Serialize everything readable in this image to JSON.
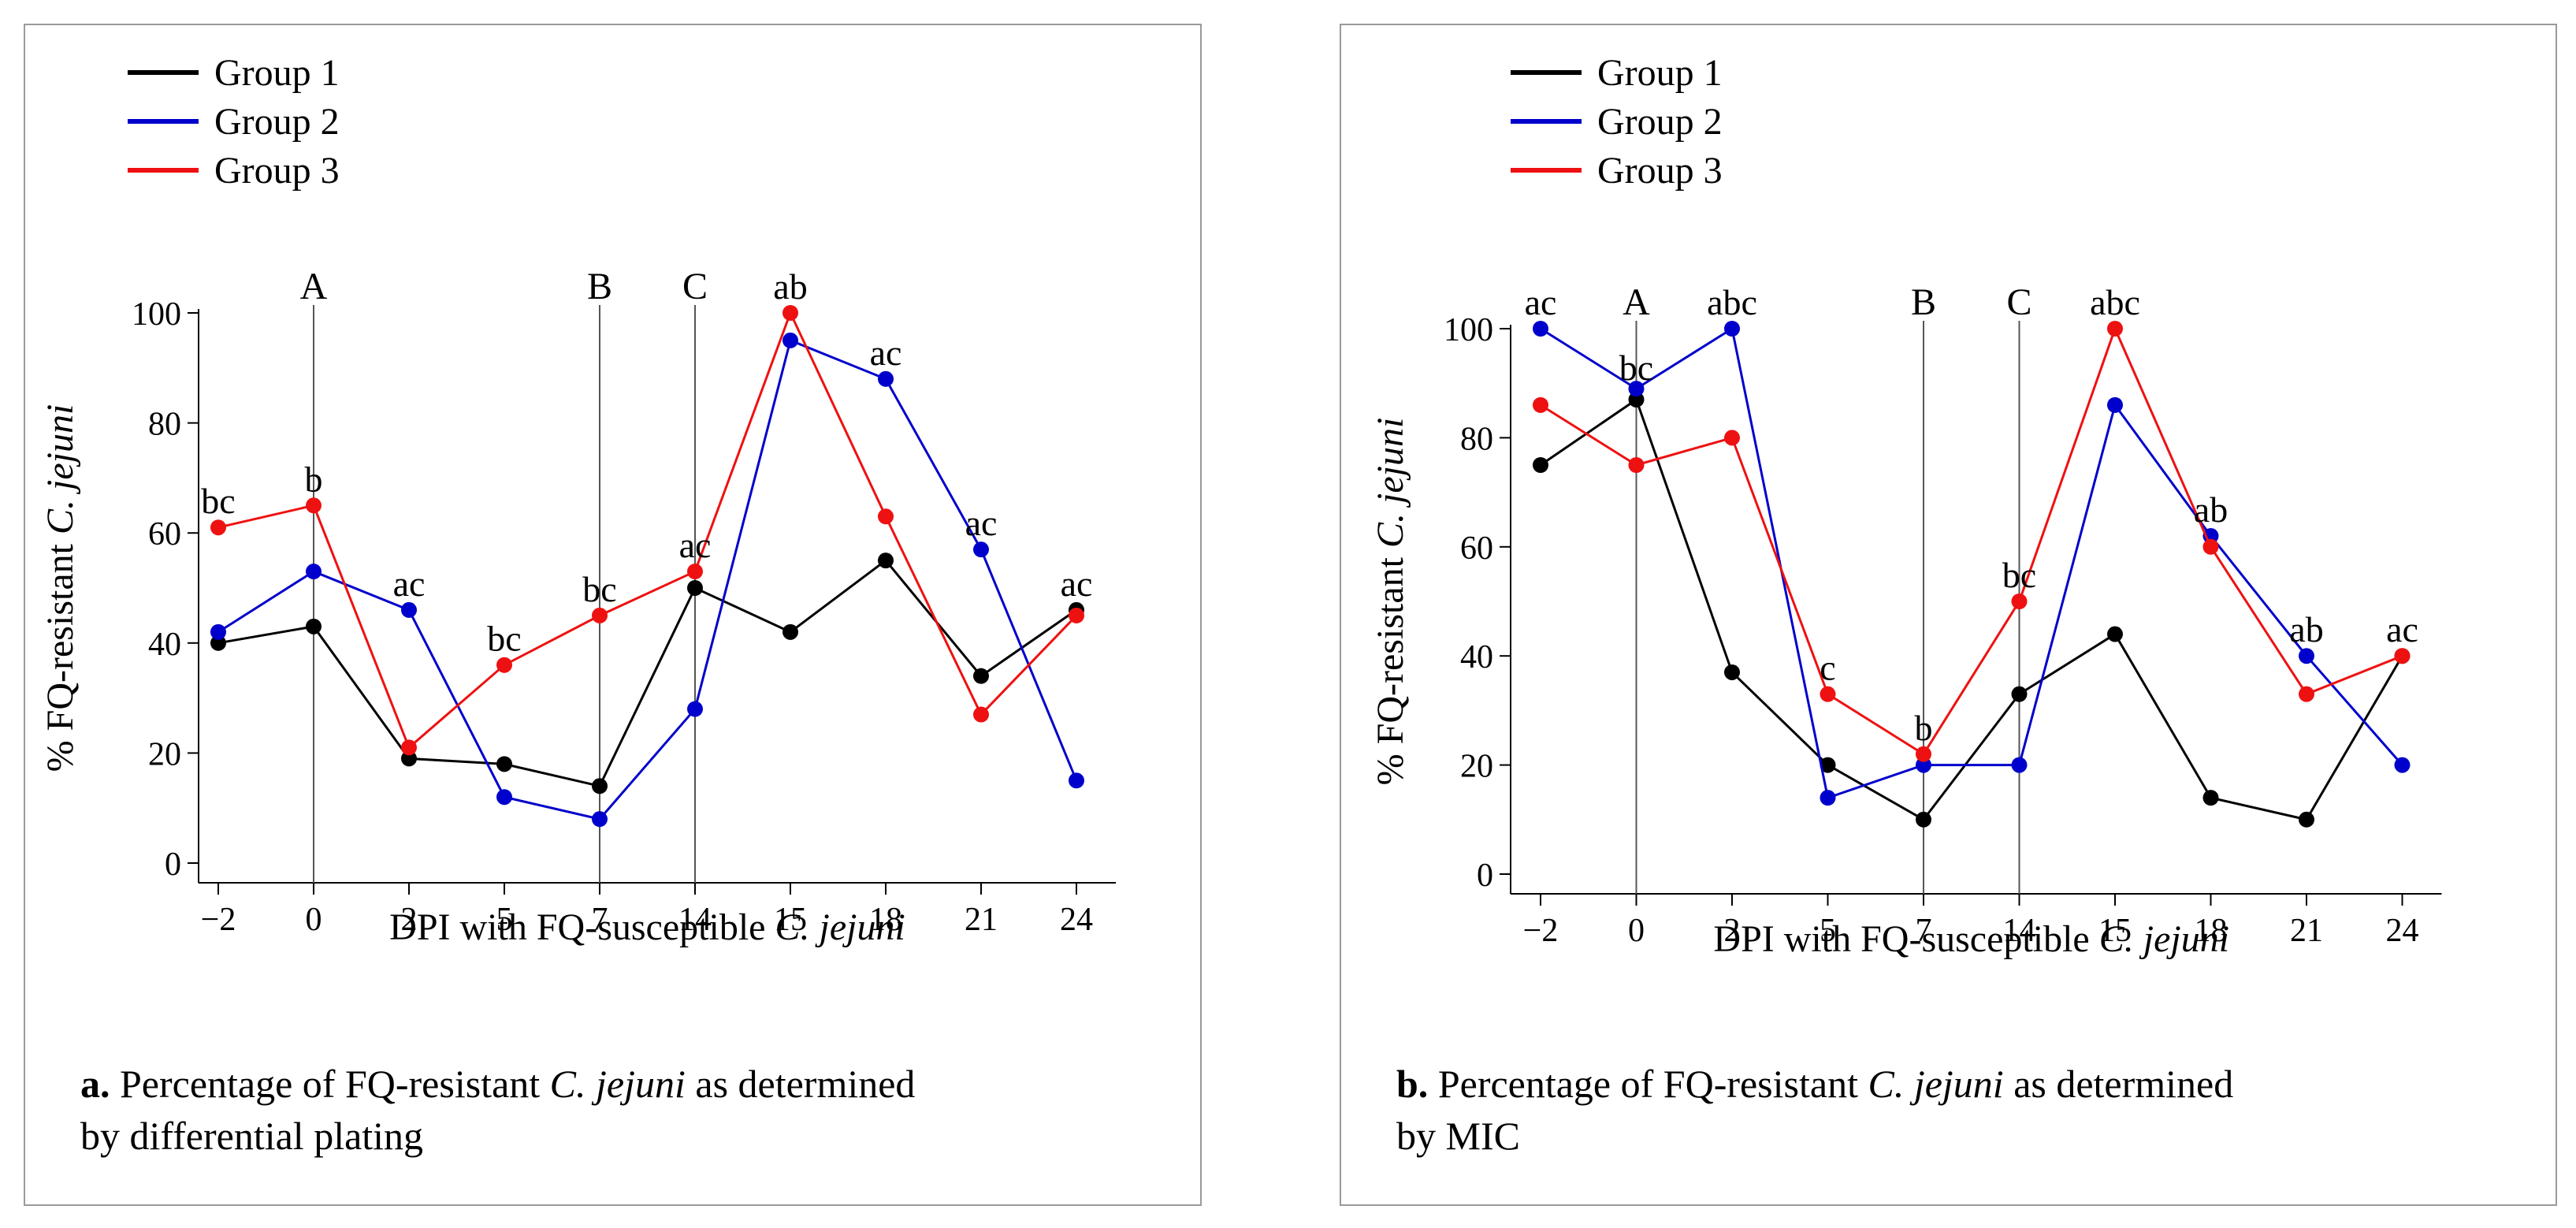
{
  "chart_data": [
    {
      "id": "a",
      "type": "line",
      "categories": [
        "−2",
        "0",
        "2",
        "5",
        "7",
        "14",
        "15",
        "18",
        "21",
        "24"
      ],
      "series": [
        {
          "name": "Group 1",
          "color": "#000000",
          "values": [
            40,
            43,
            19,
            18,
            14,
            50,
            42,
            55,
            34,
            46
          ]
        },
        {
          "name": "Group 2",
          "color": "#0000cc",
          "values": [
            42,
            53,
            46,
            12,
            8,
            28,
            95,
            88,
            57,
            15
          ]
        },
        {
          "name": "Group 3",
          "color": "#ee1111",
          "values": [
            61,
            65,
            21,
            36,
            45,
            53,
            100,
            63,
            27,
            45
          ]
        }
      ],
      "ylim": [
        0,
        100
      ],
      "yticks": [
        "0",
        "20",
        "40",
        "60",
        "80",
        "100"
      ],
      "ylabel_prefix": "% FQ-resistant ",
      "ylabel_italic": "C. jejuni",
      "xlabel_prefix": "DPI with FQ-susceptible ",
      "xlabel_italic": "C. jejuni",
      "markers": [
        {
          "label": "A",
          "index": 1
        },
        {
          "label": "B",
          "index": 4
        },
        {
          "label": "C",
          "index": 5
        }
      ],
      "annotations": [
        {
          "text": "bc",
          "index": 0,
          "value": 61
        },
        {
          "text": "b",
          "index": 1,
          "value": 65
        },
        {
          "text": "ac",
          "index": 2,
          "value": 46
        },
        {
          "text": "bc",
          "index": 3,
          "value": 36
        },
        {
          "text": "bc",
          "index": 4,
          "value": 45
        },
        {
          "text": "ac",
          "index": 5,
          "value": 53
        },
        {
          "text": "ab",
          "index": 6,
          "value": 100
        },
        {
          "text": "ac",
          "index": 7,
          "value": 88
        },
        {
          "text": "ac",
          "index": 8,
          "value": 57
        },
        {
          "text": "ac",
          "index": 9,
          "value": 46
        }
      ],
      "caption_bold": "a.",
      "caption_pre": " Percentage of FQ-resistant ",
      "caption_italic": "C. jejuni",
      "caption_line1_rest": " as determined",
      "caption_line2": "by differential plating"
    },
    {
      "id": "b",
      "type": "line",
      "categories": [
        "−2",
        "0",
        "2",
        "5",
        "7",
        "14",
        "15",
        "18",
        "21",
        "24"
      ],
      "series": [
        {
          "name": "Group 1",
          "color": "#000000",
          "values": [
            75,
            87,
            37,
            20,
            10,
            33,
            44,
            14,
            10,
            40
          ]
        },
        {
          "name": "Group 2",
          "color": "#0000cc",
          "values": [
            100,
            89,
            100,
            14,
            20,
            20,
            86,
            62,
            40,
            20
          ]
        },
        {
          "name": "Group 3",
          "color": "#ee1111",
          "values": [
            86,
            75,
            80,
            33,
            22,
            50,
            100,
            60,
            33,
            40
          ]
        }
      ],
      "ylim": [
        0,
        100
      ],
      "yticks": [
        "0",
        "20",
        "40",
        "60",
        "80",
        "100"
      ],
      "ylabel_prefix": "% FQ-resistant ",
      "ylabel_italic": "C. jejuni",
      "xlabel_prefix": "DPI with FQ-susceptible ",
      "xlabel_italic": "C. jejuni",
      "markers": [
        {
          "label": "A",
          "index": 1
        },
        {
          "label": "B",
          "index": 4
        },
        {
          "label": "C",
          "index": 5
        }
      ],
      "annotations": [
        {
          "text": "ac",
          "index": 0,
          "value": 100
        },
        {
          "text": "bc",
          "index": 1,
          "value": 88
        },
        {
          "text": "abc",
          "index": 2,
          "value": 100
        },
        {
          "text": "c",
          "index": 3,
          "value": 33
        },
        {
          "text": "b",
          "index": 4,
          "value": 22
        },
        {
          "text": "bc",
          "index": 5,
          "value": 50
        },
        {
          "text": "abc",
          "index": 6,
          "value": 100
        },
        {
          "text": "ab",
          "index": 7,
          "value": 62
        },
        {
          "text": "ab",
          "index": 8,
          "value": 40
        },
        {
          "text": "ac",
          "index": 9,
          "value": 40
        }
      ],
      "caption_bold": "b.",
      "caption_pre": " Percentage of FQ-resistant ",
      "caption_italic": "C. jejuni",
      "caption_line1_rest": " as determined",
      "caption_line2": "by MIC"
    }
  ]
}
